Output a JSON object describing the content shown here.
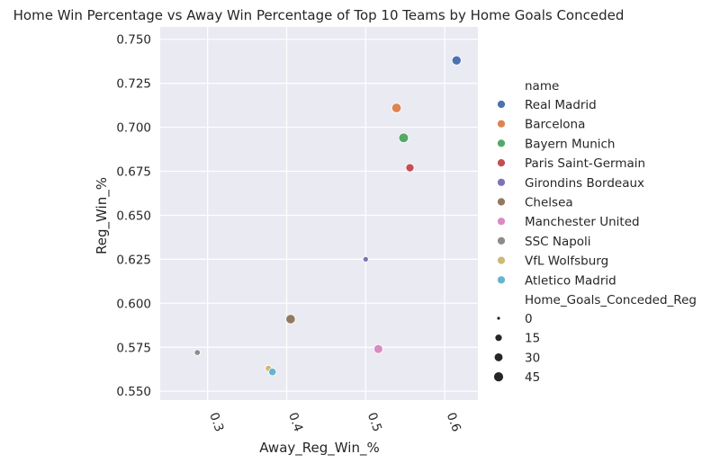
{
  "chart_data": {
    "type": "scatter",
    "title": "Home Win Percentage vs Away Win Percentage of Top 10 Teams by Home Goals Conceded",
    "xlabel": "Away_Reg_Win_%",
    "ylabel": "Reg_Win_%",
    "xlim": [
      0.24,
      0.642
    ],
    "ylim": [
      0.545,
      0.757
    ],
    "xticks": [
      {
        "value": 0.3,
        "label": "0.3"
      },
      {
        "value": 0.4,
        "label": "0.4"
      },
      {
        "value": 0.5,
        "label": "0.5"
      },
      {
        "value": 0.6,
        "label": "0.6"
      }
    ],
    "yticks": [
      {
        "value": 0.55,
        "label": "0.550"
      },
      {
        "value": 0.575,
        "label": "0.575"
      },
      {
        "value": 0.6,
        "label": "0.600"
      },
      {
        "value": 0.625,
        "label": "0.625"
      },
      {
        "value": 0.65,
        "label": "0.650"
      },
      {
        "value": 0.675,
        "label": "0.675"
      },
      {
        "value": 0.7,
        "label": "0.700"
      },
      {
        "value": 0.725,
        "label": "0.725"
      },
      {
        "value": 0.75,
        "label": "0.750"
      }
    ],
    "grid": true,
    "hue_legend_title": "name",
    "size_legend_title": "Home_Goals_Conceded_Reg",
    "size_legend": [
      {
        "label": "0",
        "value": 0
      },
      {
        "label": "15",
        "value": 15
      },
      {
        "label": "30",
        "value": 30
      },
      {
        "label": "45",
        "value": 45
      }
    ],
    "points": [
      {
        "name": "Real Madrid",
        "x": 0.615,
        "y": 0.738,
        "size": 36,
        "color": "#4c72b0"
      },
      {
        "name": "Barcelona",
        "x": 0.539,
        "y": 0.711,
        "size": 40,
        "color": "#dd8452"
      },
      {
        "name": "Bayern Munich",
        "x": 0.548,
        "y": 0.694,
        "size": 42,
        "color": "#55a868"
      },
      {
        "name": "Paris Saint-Germain",
        "x": 0.556,
        "y": 0.677,
        "size": 24,
        "color": "#c44e52"
      },
      {
        "name": "Girondins Bordeaux",
        "x": 0.5,
        "y": 0.625,
        "size": 4,
        "color": "#8172b3"
      },
      {
        "name": "Chelsea",
        "x": 0.405,
        "y": 0.591,
        "size": 38,
        "color": "#937860"
      },
      {
        "name": "Manchester United",
        "x": 0.516,
        "y": 0.574,
        "size": 32,
        "color": "#da8bc3"
      },
      {
        "name": "SSC Napoli",
        "x": 0.287,
        "y": 0.572,
        "size": 6,
        "color": "#8c8c8c"
      },
      {
        "name": "VfL Wolfsburg",
        "x": 0.377,
        "y": 0.563,
        "size": 8,
        "color": "#ccb974"
      },
      {
        "name": "Atletico Madrid",
        "x": 0.382,
        "y": 0.561,
        "size": 18,
        "color": "#64b5cd"
      }
    ]
  }
}
